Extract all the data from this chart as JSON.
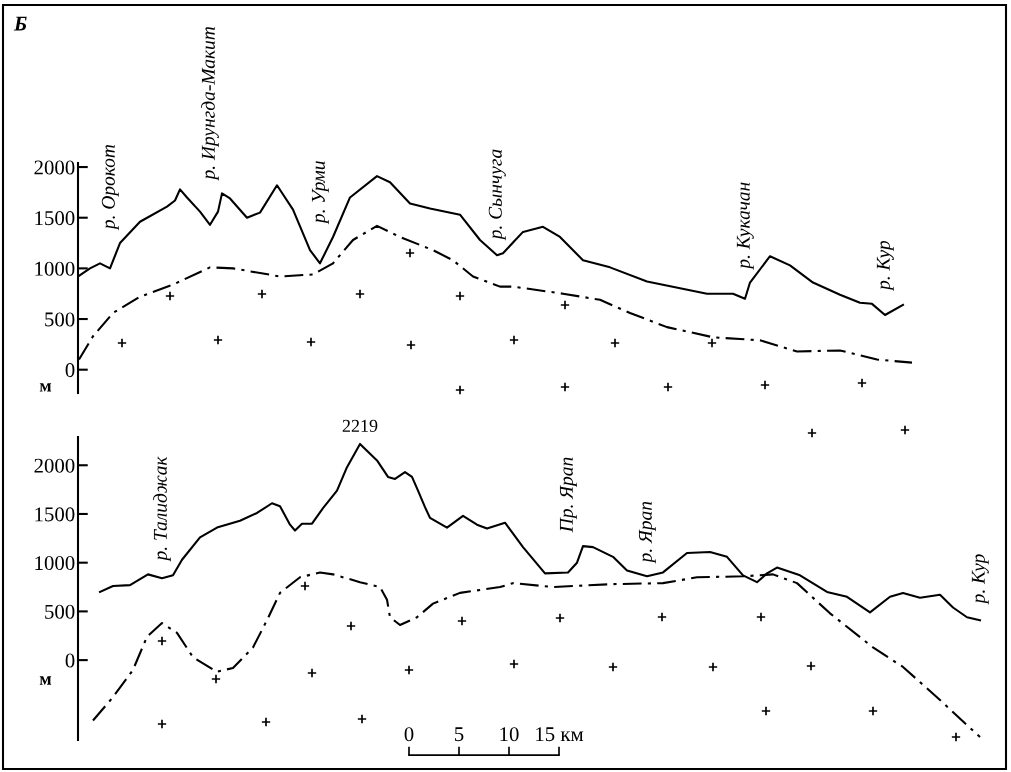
{
  "chart_data": [
    {
      "type": "line",
      "title": "Б",
      "ylabel": "м",
      "xlim": [
        -33.1,
        59.7
      ],
      "ylim": [
        -230,
        2040
      ],
      "yticks": [
        0,
        500,
        1000,
        1500,
        2000
      ],
      "tick_labels": "y",
      "grid": false,
      "marker": "none",
      "annotations": [
        {
          "text": "р. Орокот",
          "x": -29.9,
          "y": 1000
        },
        {
          "text": "р. Ирунгда-Макит",
          "x": -19.9,
          "y": 1430
        },
        {
          "text": "р. Урми",
          "x": -8.9,
          "y": 1050
        },
        {
          "text": "р. Сынчуга",
          "x": 8.8,
          "y": 1130
        },
        {
          "text": "р. Кукачан",
          "x": 33.6,
          "y": 700
        },
        {
          "text": "р. Кур",
          "x": 47.6,
          "y": 540
        }
      ],
      "series": [
        {
          "color": "#000000",
          "line_style": "solid",
          "x": [
            -33.1,
            -31.9,
            -30.9,
            -29.9,
            -28.9,
            -26.9,
            -24.2,
            -23.4,
            -22.9,
            -22.2,
            -20.9,
            -19.9,
            -19.1,
            -18.7,
            -17.9,
            -16.2,
            -14.9,
            -13.2,
            -11.6,
            -9.9,
            -8.9,
            -7.6,
            -5.9,
            -3.2,
            -1.9,
            0.1,
            2.1,
            5.1,
            7.1,
            8.8,
            9.4,
            11.4,
            13.4,
            15.1,
            17.4,
            20.1,
            23.8,
            29.8,
            32.4,
            33.6,
            34.1,
            36.1,
            38.1,
            40.4,
            43.1,
            45.1,
            46.3,
            47.6,
            49.4
          ],
          "values": [
            920,
            1000,
            1050,
            1000,
            1250,
            1460,
            1610,
            1670,
            1780,
            1700,
            1560,
            1430,
            1560,
            1740,
            1690,
            1500,
            1550,
            1820,
            1580,
            1180,
            1050,
            1310,
            1700,
            1910,
            1850,
            1640,
            1590,
            1530,
            1280,
            1130,
            1150,
            1360,
            1410,
            1310,
            1080,
            1010,
            870,
            750,
            750,
            700,
            860,
            1120,
            1030,
            860,
            740,
            660,
            650,
            540,
            640
          ]
        },
        {
          "color": "#000000",
          "line_style": "dashdot",
          "x": [
            -33,
            -31.6,
            -29.6,
            -26.9,
            -23.6,
            -19.9,
            -17.6,
            -12.9,
            -9.6,
            -7.6,
            -5.6,
            -3.2,
            -0.9,
            2.4,
            4.4,
            6.4,
            9.1,
            10.4,
            15.4,
            19.1,
            22.1,
            25.8,
            30.4,
            35.1,
            38.8,
            43.1,
            46.8,
            50.3
          ],
          "values": [
            100,
            330,
            560,
            720,
            840,
            1010,
            1000,
            920,
            940,
            1050,
            1280,
            1420,
            1310,
            1180,
            1080,
            920,
            820,
            820,
            750,
            690,
            560,
            420,
            320,
            290,
            180,
            190,
            100,
            70
          ]
        }
      ]
    },
    {
      "type": "line",
      "ylabel": "м",
      "xlim": [
        -33.1,
        59.7
      ],
      "ylim": [
        -820,
        2290
      ],
      "yticks": [
        0,
        500,
        1000,
        1500,
        2000
      ],
      "xticks": [
        0,
        5,
        10,
        {
          "value": 15,
          "label": "15 км"
        }
      ],
      "grid": false,
      "marker": "none",
      "annotations": [
        {
          "text": "р. Талиджак",
          "x": -24.7,
          "y": 840
        },
        {
          "text": "2219",
          "x": -4.9,
          "y": 2219
        },
        {
          "text": "Пр. Ярап",
          "x": 15.9,
          "y": 900
        },
        {
          "text": "р. Ярап",
          "x": 23.8,
          "y": 860
        },
        {
          "text": "р. Кур",
          "x": 57.1,
          "y": 410
        }
      ],
      "series": [
        {
          "color": "#000000",
          "line_style": "solid",
          "x": [
            -30.9,
            -29.6,
            -27.9,
            -26.1,
            -24.7,
            -23.6,
            -22.7,
            -20.9,
            -19.2,
            -16.9,
            -15.2,
            -13.7,
            -12.9,
            -11.9,
            -11.4,
            -10.7,
            -9.7,
            -8.6,
            -7.2,
            -6.2,
            -4.9,
            -3.2,
            -2.1,
            -1.4,
            -0.4,
            0.3,
            0.9,
            1.6,
            2.1,
            3.8,
            5.4,
            6.8,
            7.8,
            9.6,
            11.4,
            13.6,
            15.9,
            16.8,
            17.4,
            18.4,
            20.4,
            21.8,
            23.8,
            25.4,
            27.8,
            30.1,
            31.8,
            33.4,
            34.8,
            35.8,
            36.8,
            39.1,
            41.8,
            43.8,
            46.1,
            48.1,
            49.4,
            51.1,
            53.1,
            54.4,
            55.8,
            57.1
          ],
          "values": [
            700,
            760,
            770,
            880,
            840,
            870,
            1030,
            1260,
            1360,
            1430,
            1510,
            1610,
            1580,
            1390,
            1330,
            1400,
            1400,
            1560,
            1740,
            1980,
            2219,
            2050,
            1880,
            1860,
            1930,
            1880,
            1740,
            1570,
            1460,
            1360,
            1480,
            1390,
            1350,
            1410,
            1160,
            890,
            900,
            1000,
            1170,
            1160,
            1060,
            920,
            860,
            900,
            1100,
            1110,
            1060,
            870,
            800,
            890,
            950,
            870,
            700,
            650,
            490,
            650,
            690,
            640,
            670,
            540,
            440,
            410
          ]
        },
        {
          "color": "#000000",
          "line_style": "dashdot",
          "x": [
            -31.6,
            -29.6,
            -27.6,
            -26.2,
            -24.7,
            -23.2,
            -21.6,
            -19.2,
            -17.6,
            -15.6,
            -14.2,
            -12.9,
            -10.9,
            -8.9,
            -7.6,
            -4.9,
            -2.9,
            -2.2,
            -1.9,
            -0.9,
            0.8,
            2.4,
            5.1,
            9.1,
            10.4,
            14.4,
            20.4,
            25.4,
            28.8,
            33.4,
            36.4,
            38.8,
            42.1,
            46.4,
            49.4,
            53.1,
            57.1
          ],
          "values": [
            -620,
            -380,
            -100,
            240,
            380,
            280,
            30,
            -120,
            -80,
            130,
            410,
            690,
            850,
            900,
            880,
            800,
            750,
            620,
            440,
            360,
            440,
            580,
            690,
            750,
            790,
            750,
            780,
            790,
            850,
            860,
            880,
            790,
            480,
            130,
            -70,
            -410,
            -790
          ]
        }
      ]
    }
  ]
}
